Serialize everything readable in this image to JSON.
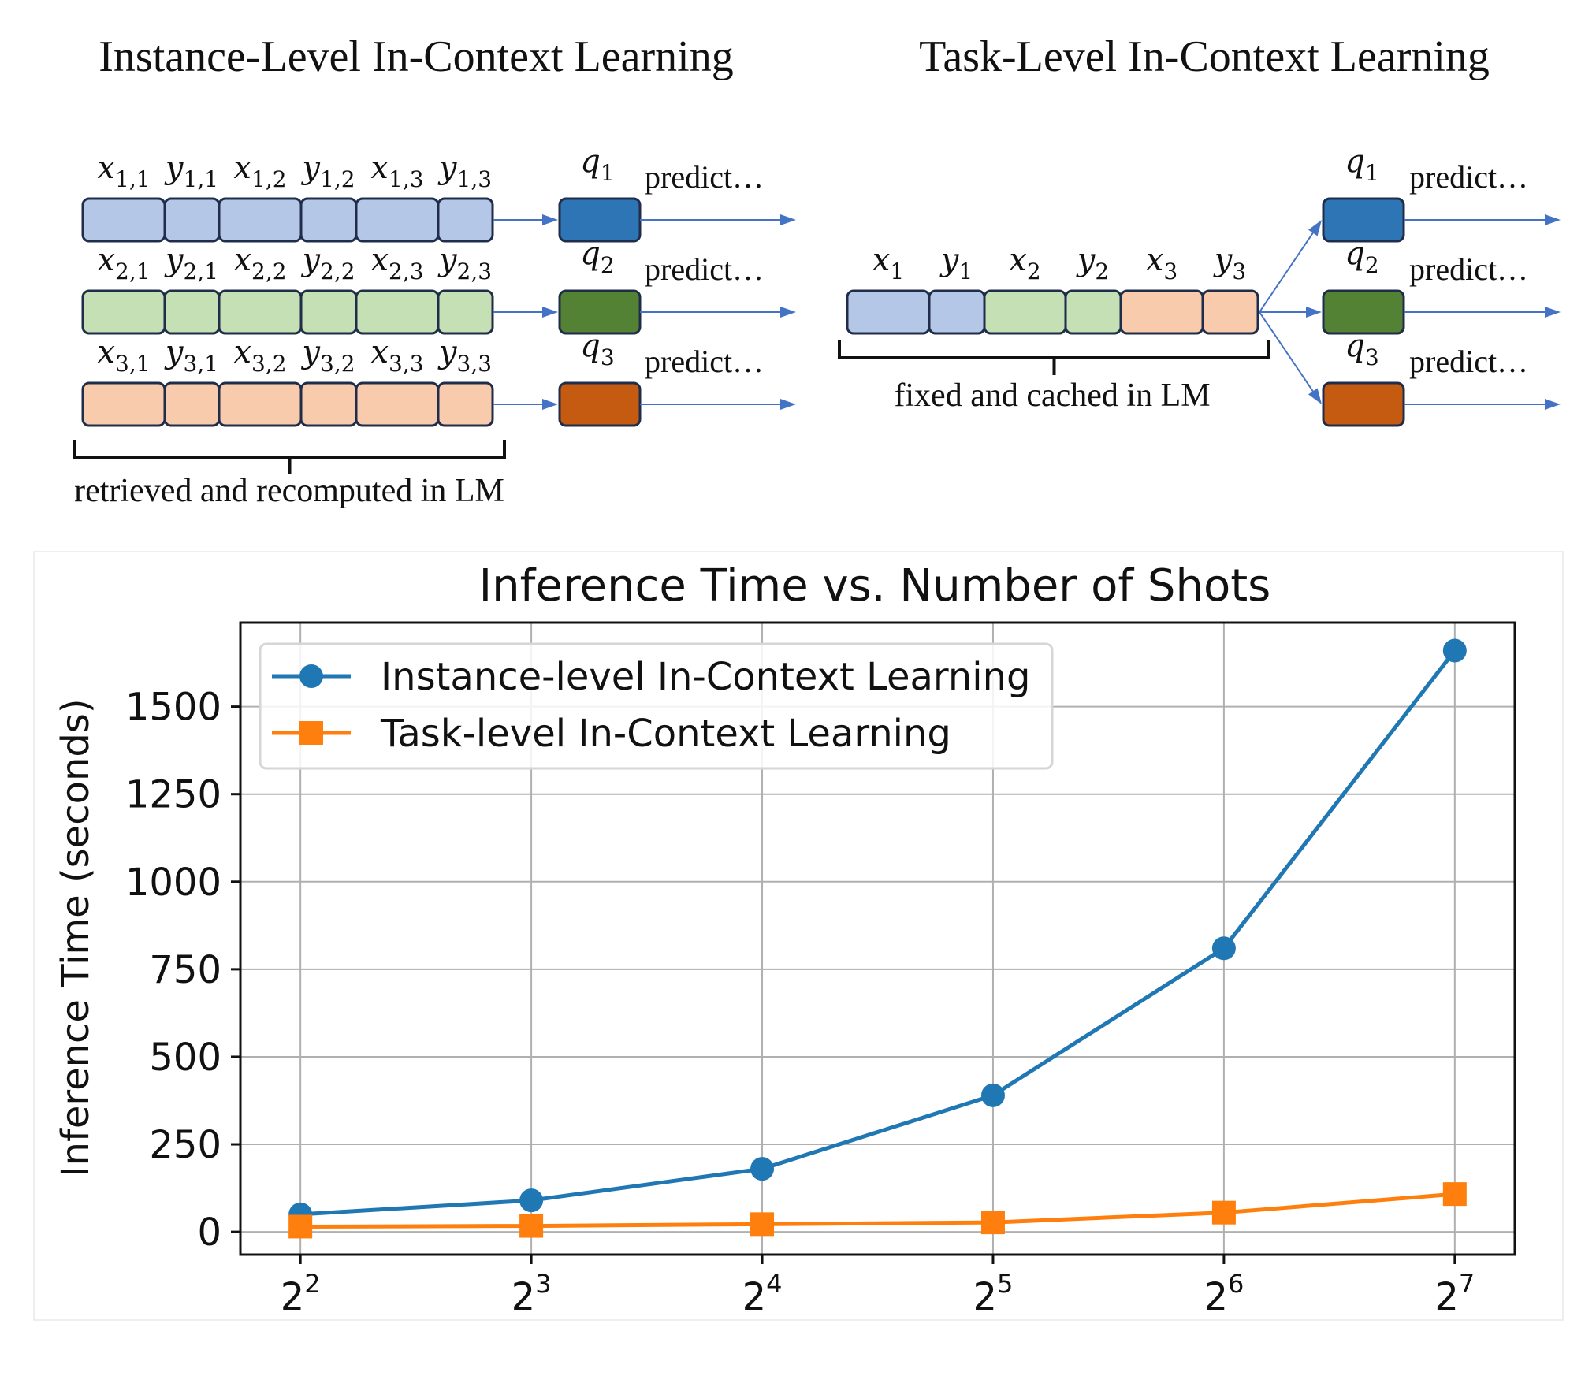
{
  "diagram": {
    "left_title": "Instance-Level In-Context Learning",
    "right_title": "Task-Level In-Context Learning",
    "predict_label": "predict…",
    "left_rows": [
      {
        "labels": [
          [
            "x",
            "1,1"
          ],
          [
            "y",
            "1,1"
          ],
          [
            "x",
            "1,2"
          ],
          [
            "y",
            "1,2"
          ],
          [
            "x",
            "1,3"
          ],
          [
            "y",
            "1,3"
          ]
        ],
        "query": [
          "q",
          "1"
        ],
        "fill": "#b4c7e7",
        "query_fill": "#2e75b6"
      },
      {
        "labels": [
          [
            "x",
            "2,1"
          ],
          [
            "y",
            "2,1"
          ],
          [
            "x",
            "2,2"
          ],
          [
            "y",
            "2,2"
          ],
          [
            "x",
            "2,3"
          ],
          [
            "y",
            "2,3"
          ]
        ],
        "query": [
          "q",
          "2"
        ],
        "fill": "#c5e0b4",
        "query_fill": "#548235"
      },
      {
        "labels": [
          [
            "x",
            "3,1"
          ],
          [
            "y",
            "3,1"
          ],
          [
            "x",
            "3,2"
          ],
          [
            "y",
            "3,2"
          ],
          [
            "x",
            "3,3"
          ],
          [
            "y",
            "3,3"
          ]
        ],
        "query": [
          "q",
          "3"
        ],
        "fill": "#f8cbad",
        "query_fill": "#c55a11"
      }
    ],
    "right_tokens": [
      [
        "x",
        "1"
      ],
      [
        "y",
        "1"
      ],
      [
        "x",
        "2"
      ],
      [
        "y",
        "2"
      ],
      [
        "x",
        "3"
      ],
      [
        "y",
        "3"
      ]
    ],
    "right_token_fills": [
      "#b4c7e7",
      "#b4c7e7",
      "#c5e0b4",
      "#c5e0b4",
      "#f8cbad",
      "#f8cbad"
    ],
    "right_queries": [
      [
        "q",
        "1"
      ],
      [
        "q",
        "2"
      ],
      [
        "q",
        "3"
      ]
    ],
    "left_caption": "retrieved and recomputed in LM",
    "right_caption": "fixed and cached in LM",
    "arrow_color": "#4472c4",
    "border_color": "#1f2d4a"
  },
  "chart_data": {
    "type": "line",
    "title": "Inference Time vs. Number of Shots",
    "xlabel": "",
    "ylabel": "Inference Time (seconds)",
    "x": [
      4,
      8,
      16,
      32,
      64,
      128
    ],
    "x_tick_labels": [
      [
        "2",
        "2"
      ],
      [
        "2",
        "3"
      ],
      [
        "2",
        "4"
      ],
      [
        "2",
        "5"
      ],
      [
        "2",
        "6"
      ],
      [
        "2",
        "7"
      ]
    ],
    "x_scale": "log2",
    "ylim": [
      -65,
      1740
    ],
    "y_ticks": [
      0,
      250,
      500,
      750,
      1000,
      1250,
      1500
    ],
    "grid": true,
    "legend_position": "upper-left",
    "series": [
      {
        "name": "Instance-level In-Context Learning",
        "values": [
          50,
          90,
          180,
          390,
          810,
          1660
        ],
        "color": "#1f77b4",
        "marker": "circle"
      },
      {
        "name": "Task-level In-Context Learning",
        "values": [
          15,
          17,
          22,
          27,
          55,
          108
        ],
        "color": "#ff7f0e",
        "marker": "square"
      }
    ]
  }
}
